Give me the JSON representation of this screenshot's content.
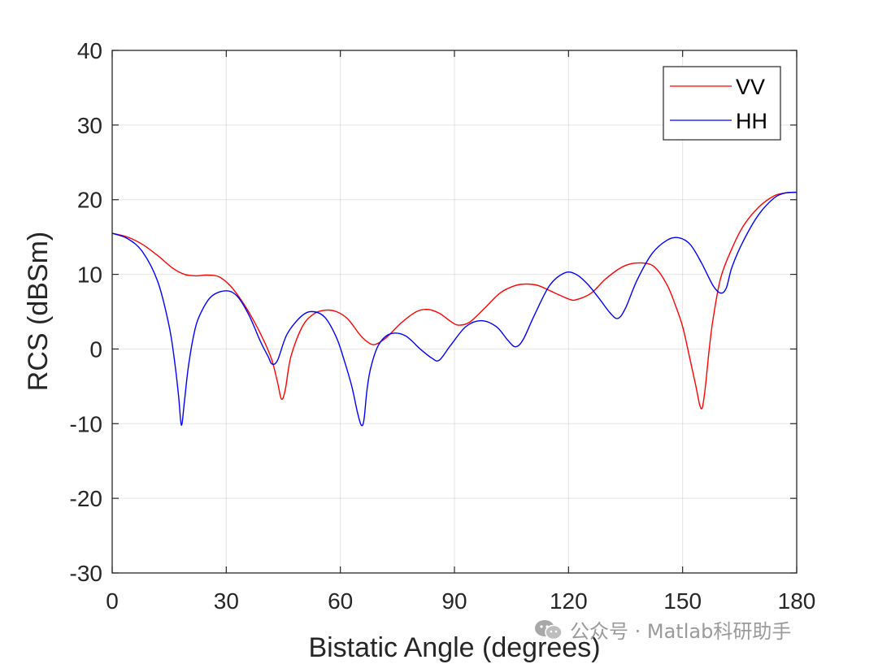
{
  "chart_data": {
    "type": "line",
    "xlabel": "Bistatic Angle (degrees)",
    "ylabel": "RCS (dBSm)",
    "xlim": [
      0,
      180
    ],
    "ylim": [
      -30,
      40
    ],
    "xticks": [
      0,
      30,
      60,
      90,
      120,
      150,
      180
    ],
    "yticks": [
      -30,
      -20,
      -10,
      0,
      10,
      20,
      30,
      40
    ],
    "xtick_labels": [
      "0",
      "30",
      "60",
      "90",
      "120",
      "150",
      "180"
    ],
    "ytick_labels": [
      "-30",
      "-20",
      "-10",
      "0",
      "10",
      "20",
      "30",
      "40"
    ],
    "grid": true,
    "legend_position": "top-right",
    "series": [
      {
        "name": "VV",
        "color": "#ff0000",
        "x": [
          0,
          4,
          8,
          12,
          16,
          19,
          22,
          25,
          28,
          31,
          34,
          37,
          40,
          42,
          43.5,
          44.5,
          45.5,
          47,
          50,
          53,
          56,
          59,
          62,
          65,
          67,
          69,
          72,
          76,
          80,
          83,
          86,
          89,
          91,
          94,
          98,
          102,
          106,
          109,
          112,
          116,
          120,
          122,
          126,
          130,
          135,
          140,
          143,
          146,
          148,
          150,
          152,
          153.5,
          154.5,
          155.2,
          156,
          157,
          158,
          160,
          163,
          166,
          170,
          174,
          177,
          180
        ],
        "y": [
          15.5,
          15,
          14,
          12.5,
          10.8,
          10,
          9.8,
          9.9,
          9.7,
          8.5,
          6.5,
          4,
          1,
          -1.5,
          -4.5,
          -6.7,
          -5.5,
          -1,
          3,
          4.7,
          5.2,
          5,
          4,
          2,
          1,
          0.6,
          1.5,
          3.5,
          5,
          5.3,
          4.8,
          3.7,
          3.2,
          3.6,
          5.5,
          7.5,
          8.5,
          8.7,
          8.5,
          7.6,
          6.7,
          6.6,
          7.5,
          9.5,
          11.2,
          11.5,
          10.8,
          8.5,
          6,
          3,
          -1.5,
          -5,
          -7.5,
          -7.8,
          -5,
          0,
          4,
          9.5,
          13.5,
          16.5,
          19,
          20.5,
          20.9,
          21
        ]
      },
      {
        "name": "HH",
        "color": "#0000ff",
        "x": [
          0,
          4,
          8,
          12,
          15,
          16.5,
          17.5,
          18.2,
          19,
          20,
          21.5,
          23,
          26,
          30,
          33,
          36,
          39,
          41,
          42,
          43.5,
          46,
          50,
          53,
          56,
          59,
          61,
          63,
          64.5,
          65.5,
          66.2,
          67,
          68,
          70,
          73,
          77,
          81,
          84,
          86,
          89,
          93,
          97,
          101,
          104,
          106,
          108,
          111,
          115,
          119,
          122,
          125,
          128,
          131,
          133,
          135,
          138,
          142,
          146,
          149,
          152,
          155,
          158,
          160,
          161.5,
          163,
          166,
          170,
          174,
          177,
          180
        ],
        "y": [
          15.5,
          14.8,
          13,
          9,
          3,
          -2,
          -6.5,
          -10.2,
          -7,
          -2.5,
          2,
          4.5,
          7,
          7.8,
          7,
          4.5,
          1,
          -1,
          -2,
          -1.5,
          2,
          4.5,
          5,
          4.2,
          1.5,
          -1.5,
          -5,
          -8.5,
          -10.2,
          -9.5,
          -5.5,
          -2.5,
          0.5,
          2,
          1.8,
          0,
          -1.2,
          -1.5,
          0.5,
          3,
          3.8,
          3,
          1.2,
          0.3,
          1.2,
          4.5,
          8.5,
          10.2,
          10,
          8.7,
          6.8,
          4.8,
          4.1,
          5.5,
          9.2,
          12.8,
          14.6,
          14.9,
          14,
          11.5,
          8.5,
          7.5,
          8.2,
          11,
          14.5,
          18,
          20.2,
          20.9,
          21
        ]
      }
    ]
  },
  "watermark": {
    "text": "公众号 · Matlab科研助手"
  }
}
